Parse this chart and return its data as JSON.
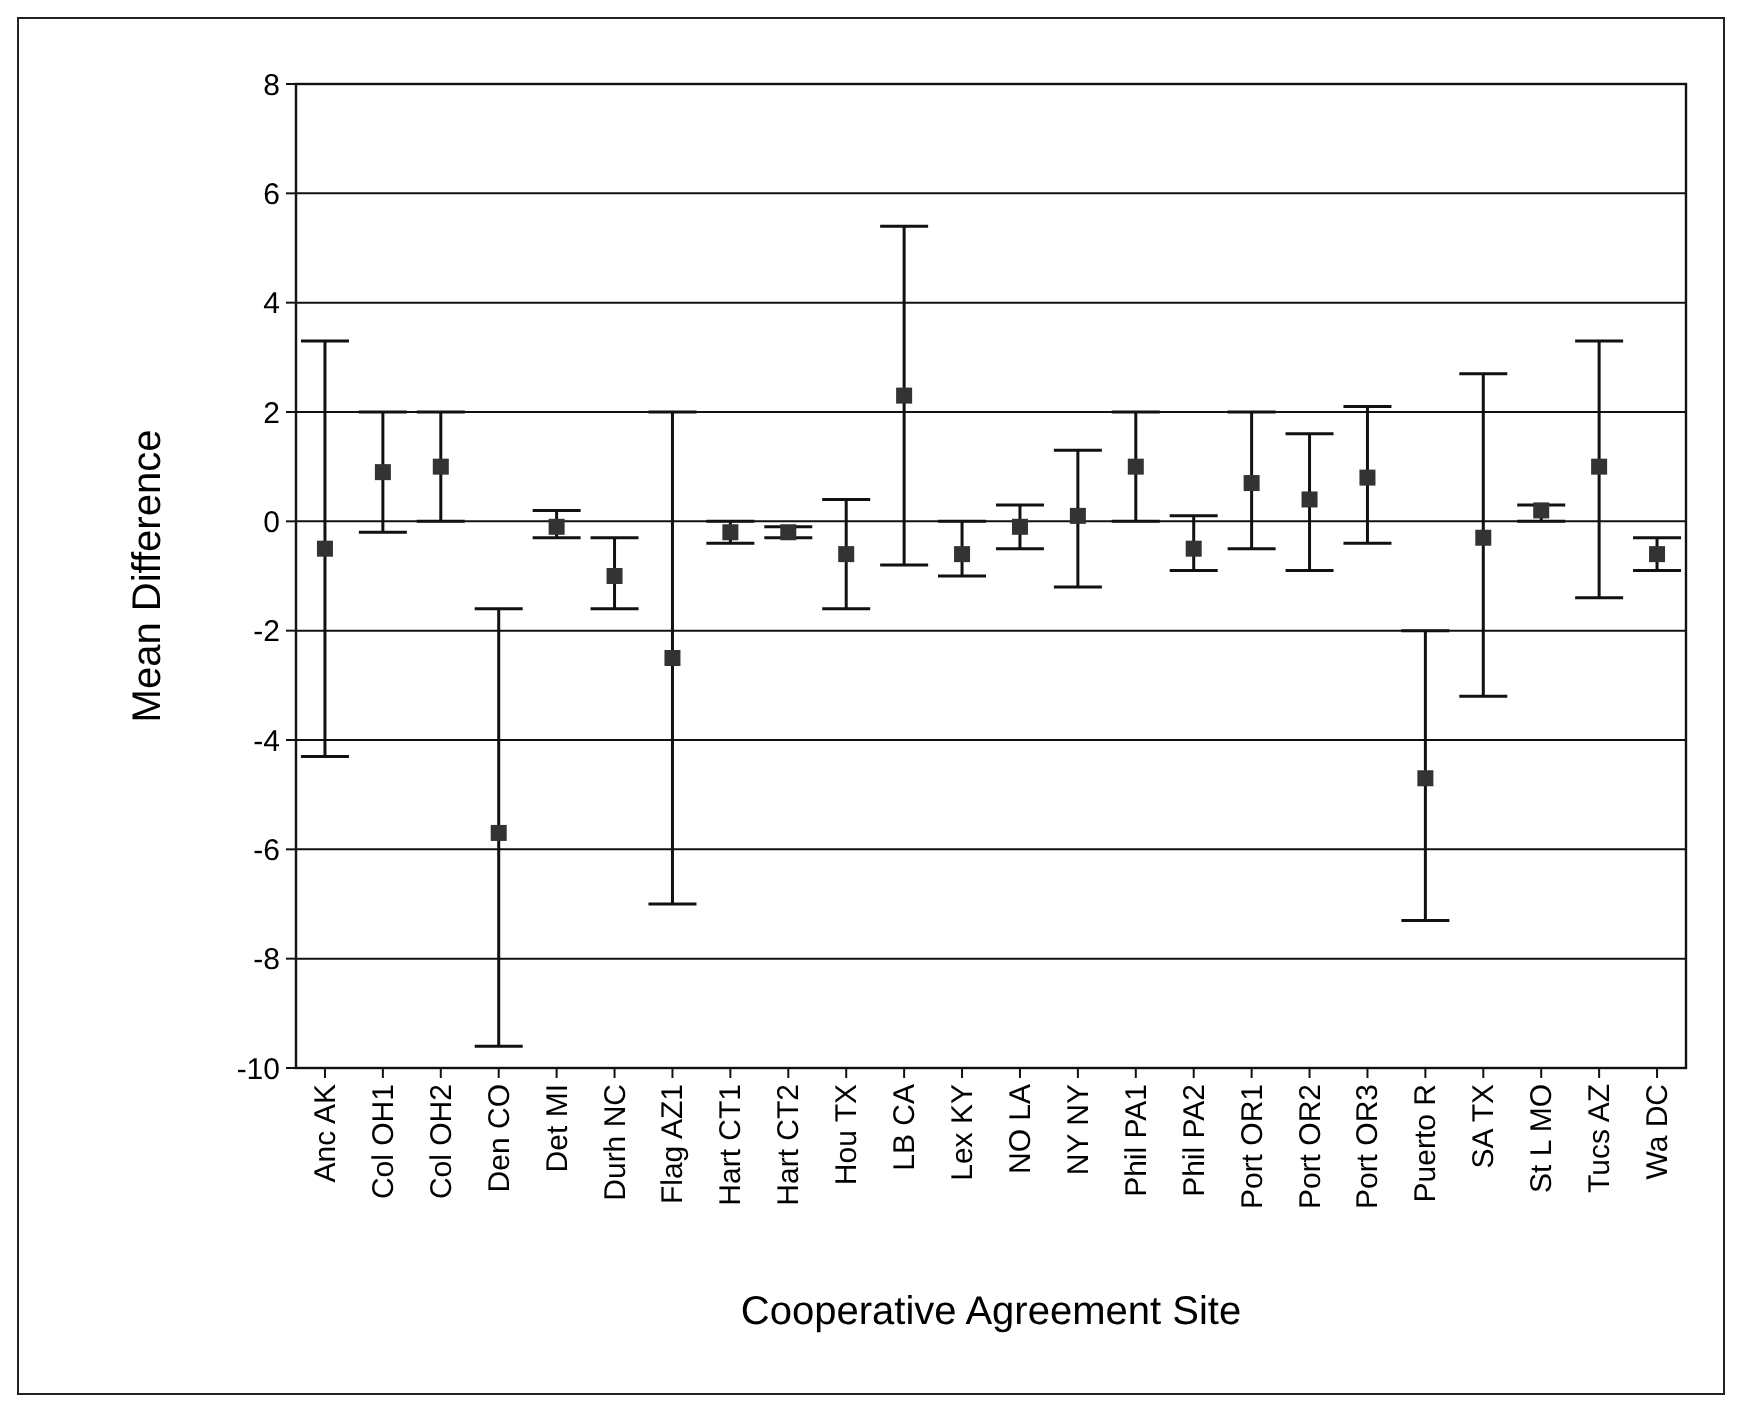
{
  "chart_data": {
    "type": "scatter",
    "xlabel": "Cooperative Agreement Site",
    "ylabel": "Mean Difference",
    "categories": [
      "Anc AK",
      "Col OH1",
      "Col OH2",
      "Den CO",
      "Det MI",
      "Durh NC",
      "Flag AZ1",
      "Hart CT1",
      "Hart CT2",
      "Hou TX",
      "LB CA",
      "Lex KY",
      "NO LA",
      "NY NY",
      "Phil PA1",
      "Phil PA2",
      "Port OR1",
      "Port OR2",
      "Port OR3",
      "Puerto R",
      "SA TX",
      "St L MO",
      "Tucs AZ",
      "Wa DC"
    ],
    "series": [
      {
        "color": "#333333",
        "values": [
          -0.5,
          0.9,
          1.0,
          -5.7,
          -0.1,
          -1.0,
          -2.5,
          -0.2,
          -0.2,
          -0.6,
          2.3,
          -0.6,
          -0.1,
          0.1,
          1.0,
          -0.5,
          0.7,
          0.4,
          0.8,
          -4.7,
          -0.3,
          0.2,
          1.0,
          -0.6
        ],
        "errors": [
          [
            -4.3,
            3.3
          ],
          [
            -0.2,
            2.0
          ],
          [
            0.0,
            2.0
          ],
          [
            -9.6,
            -1.6
          ],
          [
            -0.3,
            0.2
          ],
          [
            -1.6,
            -0.3
          ],
          [
            -7.0,
            2.0
          ],
          [
            -0.4,
            0.0
          ],
          [
            -0.3,
            -0.1
          ],
          [
            -1.6,
            0.4
          ],
          [
            -0.8,
            5.4
          ],
          [
            -1.0,
            0.0
          ],
          [
            -0.5,
            0.3
          ],
          [
            -1.2,
            1.3
          ],
          [
            0.0,
            2.0
          ],
          [
            -0.9,
            0.1
          ],
          [
            -0.5,
            2.0
          ],
          [
            -0.9,
            1.6
          ],
          [
            -0.4,
            2.1
          ],
          [
            -7.3,
            -2.0
          ],
          [
            -3.2,
            2.7
          ],
          [
            0.0,
            0.3
          ],
          [
            -1.4,
            3.3
          ],
          [
            -0.9,
            -0.3
          ]
        ]
      }
    ],
    "ylim": [
      -10,
      8
    ],
    "yticks": [
      -10,
      -8,
      -6,
      -4,
      -2,
      0,
      2,
      4,
      6,
      8
    ],
    "grid": "y",
    "marker": "square"
  }
}
